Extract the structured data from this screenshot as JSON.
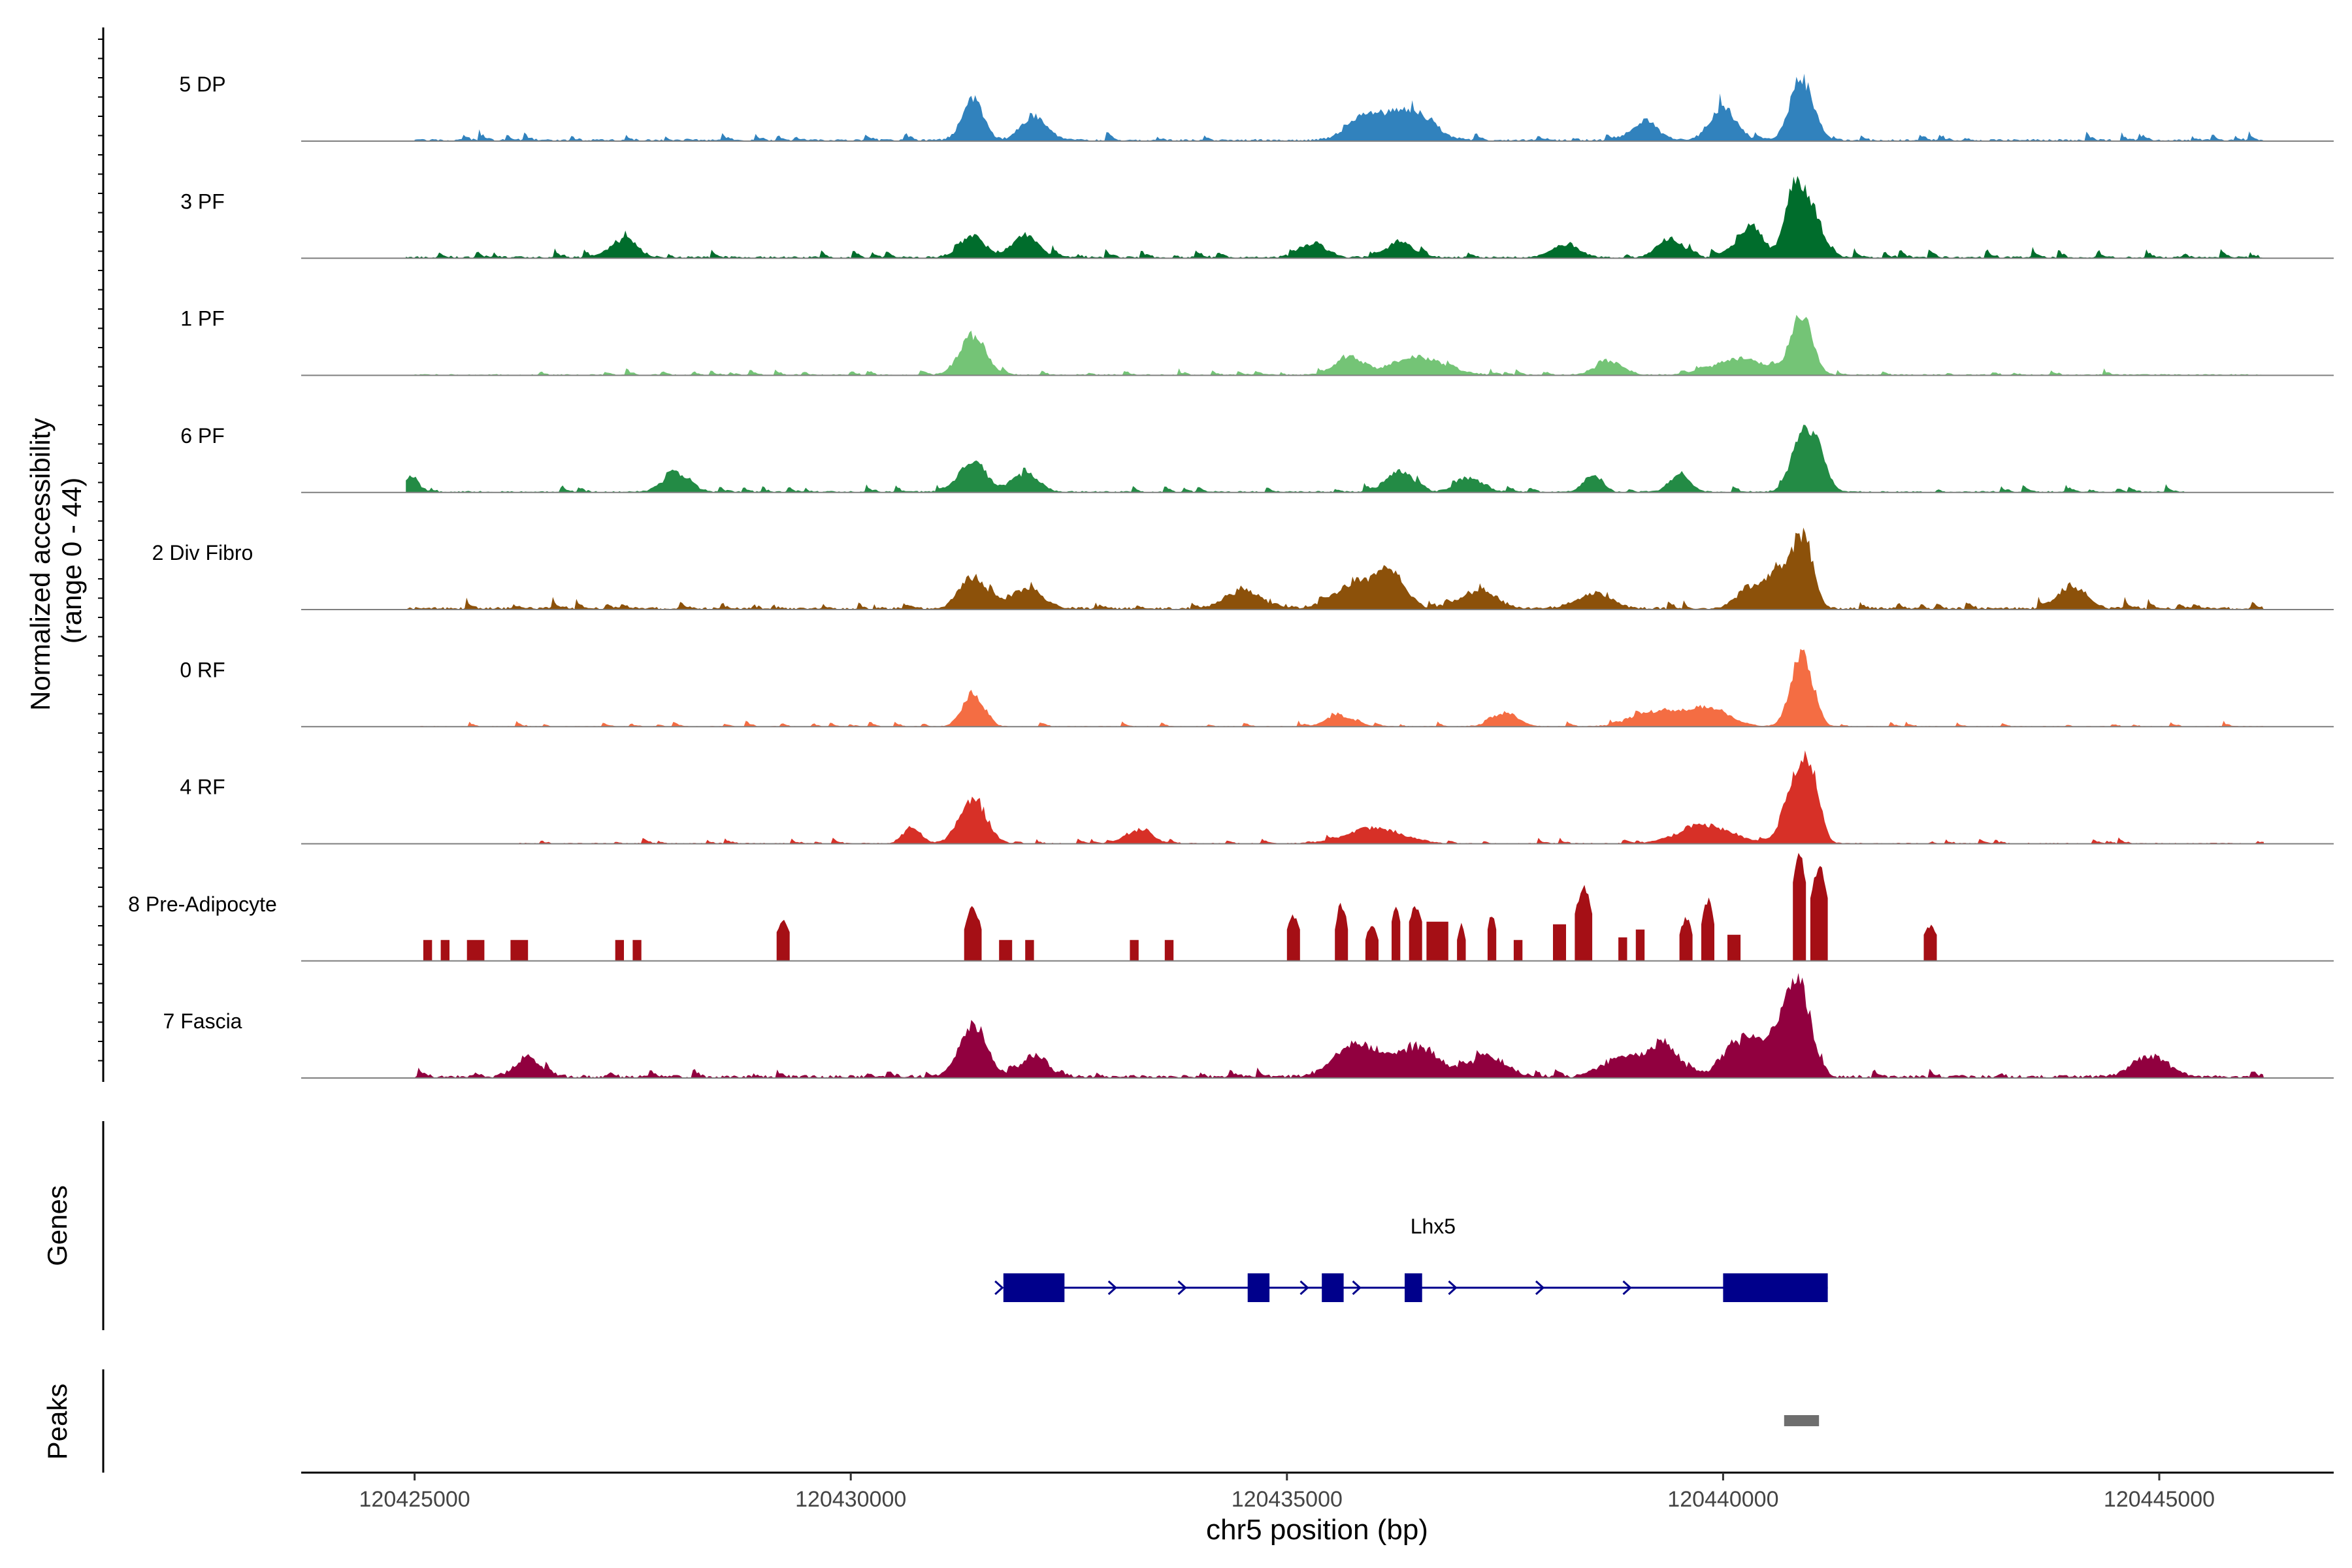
{
  "chart_data": {
    "type": "area",
    "y_axis_label_line1": "Normalized accessibility",
    "y_axis_label_line2": "(range 0 - 44)",
    "ylim": [
      0,
      44
    ],
    "xlabel": "chr5 position (bp)",
    "xlim": [
      120423700,
      120447000
    ],
    "x_ticks": [
      {
        "value": 120425000,
        "label": "120425000"
      },
      {
        "value": 120430000,
        "label": "120430000"
      },
      {
        "value": 120435000,
        "label": "120435000"
      },
      {
        "value": 120440000,
        "label": "120440000"
      },
      {
        "value": 120445000,
        "label": "120445000"
      }
    ],
    "series": [
      {
        "name": "5 DP",
        "color": "#3182bd",
        "start": 120425000,
        "end": 120446200,
        "baseline": 0.8,
        "noise": 3.0,
        "peaks": [
          [
            120431400,
            120,
            18
          ],
          [
            120432100,
            150,
            10
          ],
          [
            120435900,
            200,
            10
          ],
          [
            120436400,
            250,
            13
          ],
          [
            120439100,
            150,
            8
          ],
          [
            120440000,
            150,
            14
          ],
          [
            120440900,
            130,
            27
          ]
        ]
      },
      {
        "name": "3 PF",
        "color": "#006d2c",
        "start": 120424900,
        "end": 120446200,
        "baseline": 0.8,
        "noise": 3.0,
        "peaks": [
          [
            120427400,
            150,
            8
          ],
          [
            120431400,
            150,
            9
          ],
          [
            120432000,
            150,
            9
          ],
          [
            120435300,
            150,
            6
          ],
          [
            120436300,
            150,
            7
          ],
          [
            120438200,
            150,
            6
          ],
          [
            120439400,
            150,
            8
          ],
          [
            120440300,
            150,
            13
          ],
          [
            120440800,
            100,
            25
          ],
          [
            120441000,
            130,
            22
          ]
        ]
      },
      {
        "name": "1 PF",
        "color": "#74c476",
        "start": 120425000,
        "end": 120446200,
        "baseline": 0.5,
        "noise": 2.0,
        "peaks": [
          [
            120431400,
            150,
            17
          ],
          [
            120435700,
            150,
            8
          ],
          [
            120436500,
            300,
            8
          ],
          [
            120438700,
            150,
            6
          ],
          [
            120440200,
            300,
            7
          ],
          [
            120440900,
            120,
            26
          ]
        ]
      },
      {
        "name": "6 PF",
        "color": "#238b45",
        "start": 120424900,
        "end": 120445300,
        "baseline": 0.6,
        "noise": 2.5,
        "peaks": [
          [
            120424950,
            100,
            6
          ],
          [
            120428000,
            150,
            8
          ],
          [
            120431400,
            150,
            14
          ],
          [
            120432000,
            150,
            8
          ],
          [
            120436300,
            150,
            9
          ],
          [
            120437100,
            150,
            6
          ],
          [
            120438500,
            100,
            7
          ],
          [
            120439500,
            120,
            7
          ],
          [
            120440900,
            120,
            25
          ],
          [
            120441100,
            100,
            16
          ]
        ]
      },
      {
        "name": "2 Div Fibro",
        "color": "#8c510a",
        "start": 120424900,
        "end": 120446200,
        "baseline": 1.0,
        "noise": 3.0,
        "peaks": [
          [
            120431400,
            150,
            14
          ],
          [
            120432000,
            200,
            8
          ],
          [
            120434500,
            200,
            8
          ],
          [
            120435800,
            250,
            11
          ],
          [
            120436200,
            150,
            14
          ],
          [
            120437200,
            200,
            8
          ],
          [
            120438500,
            200,
            6
          ],
          [
            120440300,
            150,
            9
          ],
          [
            120440600,
            120,
            14
          ],
          [
            120440900,
            120,
            32
          ],
          [
            120444000,
            150,
            10
          ]
        ]
      },
      {
        "name": "0 RF",
        "color": "#f46d43",
        "start": 120425000,
        "end": 120446200,
        "baseline": 0.3,
        "noise": 1.8,
        "peaks": [
          [
            120431400,
            120,
            14
          ],
          [
            120435600,
            150,
            5
          ],
          [
            120437500,
            150,
            6
          ],
          [
            120439200,
            250,
            6
          ],
          [
            120439800,
            250,
            8
          ],
          [
            120440900,
            120,
            33
          ]
        ]
      },
      {
        "name": "4 RF",
        "color": "#d73027",
        "start": 120426200,
        "end": 120446200,
        "baseline": 0.4,
        "noise": 2.0,
        "peaks": [
          [
            120430700,
            100,
            7
          ],
          [
            120431400,
            150,
            20
          ],
          [
            120433300,
            150,
            6
          ],
          [
            120436000,
            300,
            7
          ],
          [
            120439800,
            300,
            8
          ],
          [
            120440800,
            120,
            24
          ],
          [
            120441000,
            100,
            30
          ]
        ]
      },
      {
        "name": "8 Pre-Adipocyte",
        "color": "#a50f15",
        "start": 120425000,
        "end": 120442600,
        "baseline": 0.0,
        "noise": 0.0,
        "blocks": [
          [
            120425100,
            120425200,
            8
          ],
          [
            120425300,
            120425400,
            8
          ],
          [
            120425600,
            120425800,
            8
          ],
          [
            120426100,
            120426300,
            8
          ],
          [
            120427300,
            120427400,
            8
          ],
          [
            120427500,
            120427600,
            8
          ],
          [
            120429150,
            120429300,
            11,
            16
          ],
          [
            120431300,
            120431500,
            12,
            22
          ],
          [
            120431700,
            120431850,
            8
          ],
          [
            120432000,
            120432100,
            8
          ],
          [
            120433200,
            120433300,
            8
          ],
          [
            120433600,
            120433700,
            8
          ],
          [
            120435000,
            120435150,
            12,
            18
          ],
          [
            120435550,
            120435700,
            12,
            24
          ],
          [
            120435900,
            120436050,
            8,
            16
          ],
          [
            120436200,
            120436300,
            15,
            24
          ],
          [
            120436400,
            120436550,
            15,
            22
          ],
          [
            120436600,
            120436850,
            15
          ],
          [
            120436950,
            120437050,
            8,
            16
          ],
          [
            120437300,
            120437400,
            12,
            20
          ],
          [
            120437600,
            120437700,
            8
          ],
          [
            120438050,
            120438200,
            14
          ],
          [
            120438300,
            120438500,
            18,
            30
          ],
          [
            120438800,
            120438900,
            9
          ],
          [
            120439000,
            120439100,
            12
          ],
          [
            120439500,
            120439650,
            10,
            18
          ],
          [
            120439750,
            120439900,
            14,
            25
          ],
          [
            120440050,
            120440200,
            10
          ],
          [
            120440800,
            120440950,
            30,
            42
          ],
          [
            120441000,
            120441200,
            24,
            38
          ],
          [
            120442300,
            120442450,
            10,
            14
          ]
        ]
      },
      {
        "name": "7 Fascia",
        "color": "#91003f",
        "start": 120425000,
        "end": 120446200,
        "baseline": 1.2,
        "noise": 3.0,
        "peaks": [
          [
            120426300,
            150,
            8
          ],
          [
            120431400,
            150,
            22
          ],
          [
            120432100,
            150,
            9
          ],
          [
            120435800,
            250,
            14
          ],
          [
            120436500,
            250,
            13
          ],
          [
            120437300,
            200,
            9
          ],
          [
            120438800,
            200,
            8
          ],
          [
            120439300,
            200,
            14
          ],
          [
            120440100,
            150,
            12
          ],
          [
            120440400,
            150,
            15
          ],
          [
            120440700,
            120,
            22
          ],
          [
            120440900,
            120,
            35
          ],
          [
            120444900,
            200,
            9
          ]
        ]
      }
    ],
    "genes_label": "Genes",
    "gene": {
      "name": "Lhx5",
      "start": 120431750,
      "end": 120441200,
      "exons": [
        [
          120431750,
          120432450
        ],
        [
          120434550,
          120434800
        ],
        [
          120435400,
          120435650
        ],
        [
          120436350,
          120436550
        ],
        [
          120440000,
          120441200
        ]
      ],
      "arrows": [
        120431700,
        120433000,
        120433800,
        120435200,
        120435800,
        120436900,
        120437900,
        120438900
      ]
    },
    "peaks_label": "Peaks",
    "peak_regions": [
      [
        120440700,
        120441100
      ]
    ]
  }
}
